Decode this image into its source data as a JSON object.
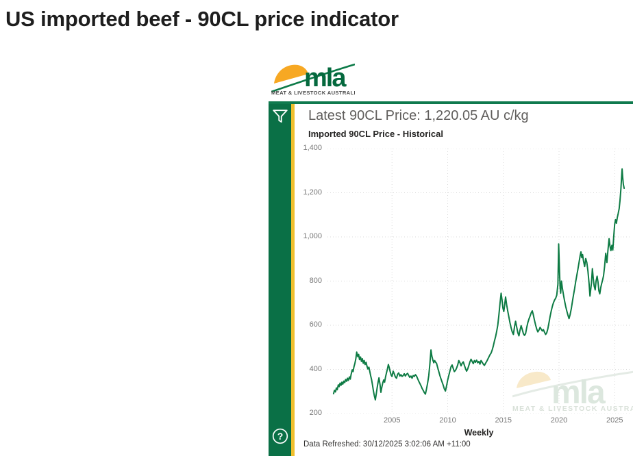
{
  "page": {
    "title": "US imported beef - 90CL price indicator"
  },
  "logo": {
    "name": "mla",
    "caption": "MEAT & LIVESTOCK AUSTRALIA"
  },
  "watermark": {
    "name": "mla",
    "caption": "MEAT & LIVESTOCK AUSTRALIA"
  },
  "report": {
    "header": "Latest 90CL Price: 1,220.05 AU c/kg",
    "data_refreshed": "Data Refreshed: 30/12/2025 3:02:06 AM +11:00",
    "help_glyph": "?"
  },
  "colors": {
    "brand_green": "#0a7046",
    "top_border_green": "#0f7a4e",
    "accent_gold": "#efbf2d",
    "line_green": "#0e7b44",
    "logo_yellow": "#f7a823",
    "logo_text_green": "#05693e",
    "header_gray": "#605e5c",
    "text_dark": "#252423",
    "axis_gray": "#767676",
    "grid_gray": "#d9d9d9"
  },
  "chart_data": {
    "type": "line",
    "title": "Imported 90CL Price - Historical",
    "xlabel": "Weekly",
    "ylabel": "",
    "unit": "AU c/kg",
    "latest_value": 1220.05,
    "x_range": [
      1999.2,
      2026.4
    ],
    "ylim": [
      200,
      1400
    ],
    "grid": "dotted",
    "legend": "none",
    "x_ticks": [
      {
        "v": 2005,
        "label": "2005"
      },
      {
        "v": 2010,
        "label": "2010"
      },
      {
        "v": 2015,
        "label": "2015"
      },
      {
        "v": 2020,
        "label": "2020"
      },
      {
        "v": 2025,
        "label": "2025"
      }
    ],
    "y_ticks": [
      {
        "v": 200,
        "label": "200"
      },
      {
        "v": 400,
        "label": "400"
      },
      {
        "v": 600,
        "label": "600"
      },
      {
        "v": 800,
        "label": "800"
      },
      {
        "v": 1000,
        "label": "1,000"
      },
      {
        "v": 1200,
        "label": "1,200"
      },
      {
        "v": 1400,
        "label": "1,400"
      }
    ],
    "series": [
      {
        "name": "Imported 90CL Price",
        "color": "#0e7b44",
        "points": [
          [
            1999.75,
            290
          ],
          [
            1999.83,
            305
          ],
          [
            1999.92,
            298
          ],
          [
            2000.0,
            316
          ],
          [
            2000.08,
            308
          ],
          [
            2000.17,
            330
          ],
          [
            2000.25,
            322
          ],
          [
            2000.33,
            338
          ],
          [
            2000.42,
            328
          ],
          [
            2000.5,
            342
          ],
          [
            2000.58,
            333
          ],
          [
            2000.67,
            347
          ],
          [
            2000.75,
            340
          ],
          [
            2000.83,
            354
          ],
          [
            2000.92,
            346
          ],
          [
            2001.0,
            360
          ],
          [
            2001.08,
            350
          ],
          [
            2001.17,
            366
          ],
          [
            2001.25,
            356
          ],
          [
            2001.33,
            378
          ],
          [
            2001.42,
            398
          ],
          [
            2001.5,
            390
          ],
          [
            2001.58,
            412
          ],
          [
            2001.67,
            428
          ],
          [
            2001.75,
            448
          ],
          [
            2001.83,
            478
          ],
          [
            2001.92,
            458
          ],
          [
            2002.0,
            468
          ],
          [
            2002.08,
            444
          ],
          [
            2002.17,
            456
          ],
          [
            2002.25,
            436
          ],
          [
            2002.33,
            448
          ],
          [
            2002.42,
            428
          ],
          [
            2002.5,
            440
          ],
          [
            2002.58,
            422
          ],
          [
            2002.67,
            432
          ],
          [
            2002.75,
            414
          ],
          [
            2002.83,
            402
          ],
          [
            2002.92,
            410
          ],
          [
            2003.0,
            392
          ],
          [
            2003.08,
            372
          ],
          [
            2003.17,
            352
          ],
          [
            2003.25,
            328
          ],
          [
            2003.33,
            302
          ],
          [
            2003.42,
            278
          ],
          [
            2003.5,
            262
          ],
          [
            2003.58,
            288
          ],
          [
            2003.67,
            318
          ],
          [
            2003.75,
            342
          ],
          [
            2003.83,
            362
          ],
          [
            2003.92,
            332
          ],
          [
            2004.0,
            296
          ],
          [
            2004.08,
            318
          ],
          [
            2004.17,
            340
          ],
          [
            2004.25,
            352
          ],
          [
            2004.33,
            342
          ],
          [
            2004.42,
            366
          ],
          [
            2004.5,
            384
          ],
          [
            2004.58,
            400
          ],
          [
            2004.67,
            422
          ],
          [
            2004.75,
            408
          ],
          [
            2004.83,
            390
          ],
          [
            2004.92,
            374
          ],
          [
            2005.0,
            368
          ],
          [
            2005.1,
            392
          ],
          [
            2005.2,
            380
          ],
          [
            2005.3,
            366
          ],
          [
            2005.4,
            360
          ],
          [
            2005.5,
            378
          ],
          [
            2005.6,
            384
          ],
          [
            2005.7,
            370
          ],
          [
            2005.8,
            376
          ],
          [
            2005.9,
            368
          ],
          [
            2006.0,
            372
          ],
          [
            2006.1,
            380
          ],
          [
            2006.2,
            370
          ],
          [
            2006.3,
            378
          ],
          [
            2006.4,
            382
          ],
          [
            2006.5,
            372
          ],
          [
            2006.6,
            364
          ],
          [
            2006.7,
            370
          ],
          [
            2006.8,
            360
          ],
          [
            2006.9,
            372
          ],
          [
            2007.0,
            368
          ],
          [
            2007.1,
            376
          ],
          [
            2007.2,
            370
          ],
          [
            2007.3,
            358
          ],
          [
            2007.4,
            346
          ],
          [
            2007.5,
            336
          ],
          [
            2007.6,
            326
          ],
          [
            2007.7,
            314
          ],
          [
            2007.8,
            305
          ],
          [
            2007.9,
            295
          ],
          [
            2008.0,
            288
          ],
          [
            2008.1,
            312
          ],
          [
            2008.2,
            338
          ],
          [
            2008.3,
            372
          ],
          [
            2008.4,
            425
          ],
          [
            2008.5,
            488
          ],
          [
            2008.58,
            460
          ],
          [
            2008.67,
            442
          ],
          [
            2008.75,
            430
          ],
          [
            2008.83,
            440
          ],
          [
            2008.92,
            432
          ],
          [
            2009.0,
            428
          ],
          [
            2009.1,
            408
          ],
          [
            2009.2,
            390
          ],
          [
            2009.3,
            372
          ],
          [
            2009.4,
            356
          ],
          [
            2009.5,
            342
          ],
          [
            2009.6,
            328
          ],
          [
            2009.7,
            312
          ],
          [
            2009.8,
            302
          ],
          [
            2009.9,
            326
          ],
          [
            2010.0,
            352
          ],
          [
            2010.1,
            372
          ],
          [
            2010.2,
            392
          ],
          [
            2010.3,
            412
          ],
          [
            2010.4,
            420
          ],
          [
            2010.5,
            404
          ],
          [
            2010.6,
            390
          ],
          [
            2010.7,
            396
          ],
          [
            2010.8,
            406
          ],
          [
            2010.9,
            420
          ],
          [
            2011.0,
            440
          ],
          [
            2011.1,
            430
          ],
          [
            2011.2,
            416
          ],
          [
            2011.3,
            428
          ],
          [
            2011.4,
            434
          ],
          [
            2011.5,
            418
          ],
          [
            2011.6,
            404
          ],
          [
            2011.7,
            392
          ],
          [
            2011.8,
            402
          ],
          [
            2011.9,
            418
          ],
          [
            2012.0,
            434
          ],
          [
            2012.1,
            446
          ],
          [
            2012.2,
            436
          ],
          [
            2012.3,
            426
          ],
          [
            2012.4,
            440
          ],
          [
            2012.5,
            432
          ],
          [
            2012.6,
            442
          ],
          [
            2012.7,
            430
          ],
          [
            2012.8,
            436
          ],
          [
            2012.9,
            424
          ],
          [
            2013.0,
            440
          ],
          [
            2013.1,
            432
          ],
          [
            2013.2,
            424
          ],
          [
            2013.3,
            418
          ],
          [
            2013.4,
            428
          ],
          [
            2013.5,
            436
          ],
          [
            2013.6,
            446
          ],
          [
            2013.7,
            456
          ],
          [
            2013.8,
            466
          ],
          [
            2013.9,
            474
          ],
          [
            2014.0,
            488
          ],
          [
            2014.1,
            506
          ],
          [
            2014.2,
            528
          ],
          [
            2014.3,
            548
          ],
          [
            2014.4,
            572
          ],
          [
            2014.5,
            600
          ],
          [
            2014.6,
            645
          ],
          [
            2014.7,
            700
          ],
          [
            2014.8,
            745
          ],
          [
            2014.88,
            715
          ],
          [
            2014.96,
            678
          ],
          [
            2015.04,
            662
          ],
          [
            2015.12,
            692
          ],
          [
            2015.2,
            728
          ],
          [
            2015.3,
            692
          ],
          [
            2015.4,
            662
          ],
          [
            2015.5,
            636
          ],
          [
            2015.6,
            610
          ],
          [
            2015.7,
            588
          ],
          [
            2015.8,
            570
          ],
          [
            2015.9,
            558
          ],
          [
            2016.0,
            592
          ],
          [
            2016.1,
            618
          ],
          [
            2016.2,
            592
          ],
          [
            2016.3,
            566
          ],
          [
            2016.4,
            552
          ],
          [
            2016.5,
            578
          ],
          [
            2016.6,
            598
          ],
          [
            2016.7,
            580
          ],
          [
            2016.8,
            562
          ],
          [
            2016.9,
            554
          ],
          [
            2017.0,
            562
          ],
          [
            2017.1,
            590
          ],
          [
            2017.2,
            612
          ],
          [
            2017.3,
            628
          ],
          [
            2017.4,
            642
          ],
          [
            2017.5,
            656
          ],
          [
            2017.6,
            665
          ],
          [
            2017.7,
            646
          ],
          [
            2017.8,
            622
          ],
          [
            2017.9,
            600
          ],
          [
            2018.0,
            582
          ],
          [
            2018.1,
            570
          ],
          [
            2018.2,
            578
          ],
          [
            2018.3,
            590
          ],
          [
            2018.4,
            582
          ],
          [
            2018.5,
            574
          ],
          [
            2018.6,
            580
          ],
          [
            2018.7,
            568
          ],
          [
            2018.8,
            558
          ],
          [
            2018.9,
            566
          ],
          [
            2019.0,
            584
          ],
          [
            2019.1,
            612
          ],
          [
            2019.2,
            640
          ],
          [
            2019.3,
            664
          ],
          [
            2019.4,
            686
          ],
          [
            2019.5,
            702
          ],
          [
            2019.6,
            714
          ],
          [
            2019.7,
            722
          ],
          [
            2019.8,
            736
          ],
          [
            2019.9,
            786
          ],
          [
            2019.97,
            968
          ],
          [
            2020.05,
            838
          ],
          [
            2020.1,
            772
          ],
          [
            2020.15,
            745
          ],
          [
            2020.22,
            800
          ],
          [
            2020.3,
            768
          ],
          [
            2020.4,
            738
          ],
          [
            2020.5,
            710
          ],
          [
            2020.6,
            686
          ],
          [
            2020.7,
            664
          ],
          [
            2020.8,
            646
          ],
          [
            2020.9,
            630
          ],
          [
            2021.0,
            648
          ],
          [
            2021.1,
            674
          ],
          [
            2021.2,
            706
          ],
          [
            2021.3,
            736
          ],
          [
            2021.4,
            766
          ],
          [
            2021.5,
            798
          ],
          [
            2021.6,
            826
          ],
          [
            2021.7,
            854
          ],
          [
            2021.8,
            884
          ],
          [
            2021.9,
            916
          ],
          [
            2021.97,
            932
          ],
          [
            2022.05,
            906
          ],
          [
            2022.12,
            920
          ],
          [
            2022.2,
            892
          ],
          [
            2022.3,
            866
          ],
          [
            2022.4,
            902
          ],
          [
            2022.5,
            884
          ],
          [
            2022.6,
            846
          ],
          [
            2022.7,
            788
          ],
          [
            2022.78,
            732
          ],
          [
            2022.85,
            762
          ],
          [
            2022.92,
            792
          ],
          [
            2023.0,
            856
          ],
          [
            2023.08,
            812
          ],
          [
            2023.16,
            778
          ],
          [
            2023.25,
            760
          ],
          [
            2023.33,
            800
          ],
          [
            2023.42,
            822
          ],
          [
            2023.5,
            796
          ],
          [
            2023.58,
            756
          ],
          [
            2023.66,
            742
          ],
          [
            2023.75,
            770
          ],
          [
            2023.83,
            788
          ],
          [
            2023.92,
            806
          ],
          [
            2024.0,
            824
          ],
          [
            2024.1,
            868
          ],
          [
            2024.2,
            926
          ],
          [
            2024.3,
            884
          ],
          [
            2024.4,
            942
          ],
          [
            2024.5,
            992
          ],
          [
            2024.58,
            958
          ],
          [
            2024.66,
            938
          ],
          [
            2024.75,
            962
          ],
          [
            2024.83,
            940
          ],
          [
            2024.92,
            1002
          ],
          [
            2025.0,
            1056
          ],
          [
            2025.08,
            1078
          ],
          [
            2025.16,
            1062
          ],
          [
            2025.24,
            1088
          ],
          [
            2025.32,
            1106
          ],
          [
            2025.4,
            1128
          ],
          [
            2025.48,
            1164
          ],
          [
            2025.56,
            1215
          ],
          [
            2025.62,
            1268
          ],
          [
            2025.67,
            1308
          ],
          [
            2025.72,
            1272
          ],
          [
            2025.78,
            1238
          ],
          [
            2025.85,
            1220.05
          ]
        ]
      }
    ]
  }
}
